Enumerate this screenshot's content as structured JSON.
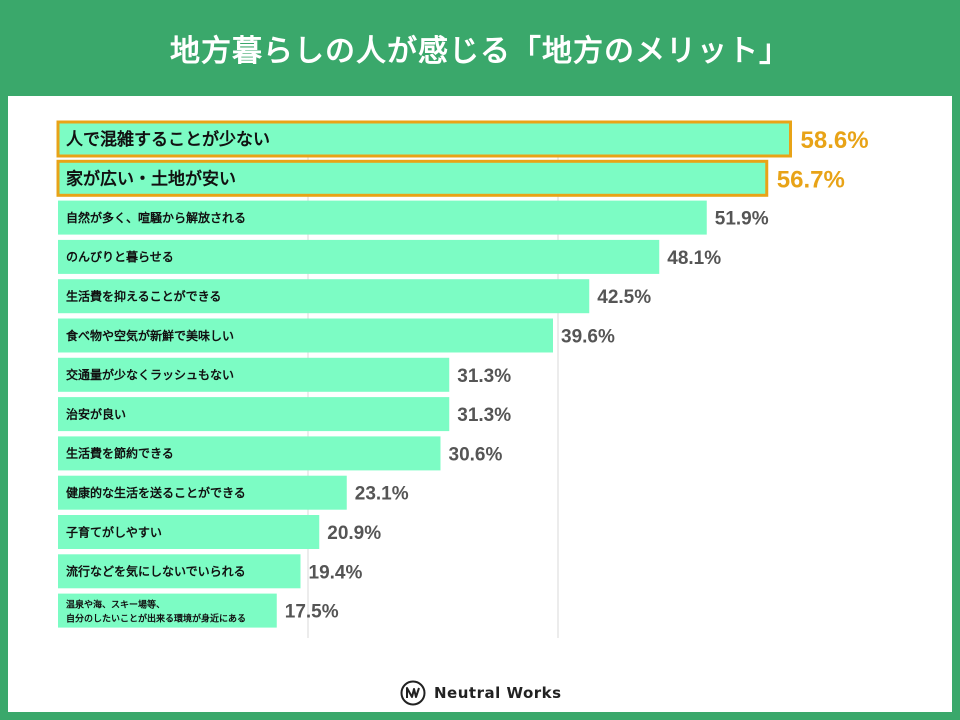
{
  "title": "地方暮らしの人が感じる「地方のメリット」",
  "brand": {
    "name": "Neutral Works"
  },
  "colors": {
    "background": "#3aa86b",
    "panel": "#ffffff",
    "bar": "#7cfcc4",
    "highlight_border": "#e8a317",
    "highlight_label": "#e8a317",
    "value_label": "#555555",
    "category_label": "#111111",
    "grid": "#d9d9d9"
  },
  "chart_data": {
    "type": "bar",
    "orientation": "horizontal",
    "title": "地方暮らしの人が感じる「地方のメリット」",
    "xlabel": "",
    "ylabel": "",
    "unit": "%",
    "xlim": [
      0,
      100
    ],
    "categories": [
      "人で混雑することが少ない",
      "家が広い・土地が安い",
      "自然が多く、喧騒から解放される",
      "のんびりと暮らせる",
      "生活費を抑えることができる",
      "食べ物や空気が新鮮で美味しい",
      "交通量が少なくラッシュもない",
      "治安が良い",
      "生活費を節約できる",
      "健康的な生活を送ることができる",
      "子育てがしやすい",
      "流行などを気にしないでいられる",
      "温泉や海、スキー場等、\n自分のしたいことが出来る環境が身近にある"
    ],
    "values": [
      58.6,
      56.7,
      51.9,
      48.1,
      42.5,
      39.6,
      31.3,
      31.3,
      30.6,
      23.1,
      20.9,
      19.4,
      17.5
    ],
    "value_labels": [
      "58.6%",
      "56.7%",
      "51.9%",
      "48.1%",
      "42.5%",
      "39.6%",
      "31.3%",
      "31.3%",
      "30.6%",
      "23.1%",
      "20.9%",
      "19.4%",
      "17.5%"
    ],
    "highlighted": [
      0,
      1
    ],
    "grid": true,
    "legend": "none"
  }
}
